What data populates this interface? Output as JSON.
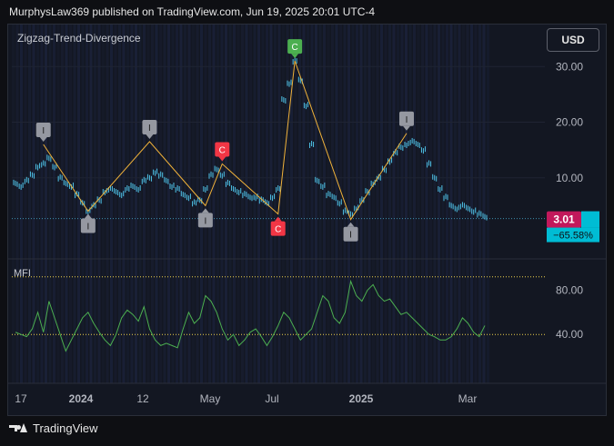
{
  "header": {
    "publisher_line": "MurphysLaw369 published on TradingView.com, Jun 19, 2025 20:01 UTC-4"
  },
  "indicator": {
    "title": "Zigzag-Trend-Divergence"
  },
  "currency_button": "USD",
  "mfi_label": "MFI",
  "footer": {
    "brand": "TradingView"
  },
  "colors": {
    "price": "#4fc3e8",
    "zigzag": "#f0b23a",
    "mfi": "#4caf50",
    "badge_i": "#9598a1",
    "badge_c_green": "#4caf50",
    "badge_c_red": "#f23645",
    "last_price_bg": "#c2185b",
    "pct_bg": "#00bcd4",
    "background": "#131722"
  },
  "chart_data": [
    {
      "type": "line",
      "price_axis": {
        "ticks": [
          "30.00",
          "20.00",
          "10.00"
        ],
        "values": [
          30,
          20,
          10
        ]
      },
      "last_price": "3.01",
      "change_pct": "−65.58%",
      "x_labels": [
        "17",
        "2024",
        "12",
        "May",
        "Jul",
        "2025",
        "Mar"
      ],
      "series": [
        {
          "values": [
            9.0,
            8.5,
            9.5,
            10.5,
            12.0,
            12.5,
            13.5,
            12.0,
            10.0,
            9.0,
            8.5,
            7.0,
            5.5,
            4.0,
            5.0,
            6.0,
            7.5,
            8.0,
            7.5,
            7.0,
            8.0,
            8.5,
            8.0,
            9.5,
            10.0,
            11.0,
            10.5,
            9.5,
            8.5,
            8.0,
            7.0,
            6.5,
            5.5,
            6.0,
            8.0,
            10.5,
            11.5,
            10.5,
            9.0,
            8.0,
            7.5,
            7.0,
            6.5,
            6.5,
            6.0,
            5.5,
            6.5,
            8.0,
            24.0,
            27.0,
            31.0,
            27.5,
            23.0,
            16.0,
            9.5,
            8.5,
            7.0,
            6.5,
            5.5,
            4.0,
            3.5,
            4.5,
            6.0,
            7.5,
            9.0,
            10.0,
            11.5,
            13.0,
            14.5,
            15.5,
            16.0,
            16.5,
            16.0,
            15.0,
            12.5,
            10.0,
            8.0,
            6.5,
            5.0,
            4.5,
            5.0,
            4.5,
            4.0,
            3.5,
            3.01
          ]
        }
      ],
      "zigzag": [
        {
          "i": 5,
          "v": 16.0,
          "label": "I",
          "pos": "top"
        },
        {
          "i": 13,
          "v": 4.0,
          "label": "I",
          "pos": "bottom"
        },
        {
          "i": 24,
          "v": 16.5,
          "label": "I",
          "pos": "top"
        },
        {
          "i": 34,
          "v": 5.0,
          "label": "I",
          "pos": "bottom"
        },
        {
          "i": 37,
          "v": 12.5,
          "label": "C",
          "pos": "top",
          "color": "red"
        },
        {
          "i": 47,
          "v": 3.5,
          "label": "C",
          "pos": "bottom",
          "color": "red"
        },
        {
          "i": 50,
          "v": 31.0,
          "label": "C",
          "pos": "top",
          "color": "green"
        },
        {
          "i": 60,
          "v": 2.5,
          "label": "I",
          "pos": "bottom"
        },
        {
          "i": 70,
          "v": 18.0,
          "label": "I",
          "pos": "top"
        }
      ]
    },
    {
      "type": "line",
      "name": "MFI",
      "y_axis": {
        "ticks": [
          "80.00",
          "40.00"
        ],
        "values": [
          80,
          40
        ]
      },
      "series": [
        {
          "values": [
            42,
            40,
            38,
            45,
            60,
            42,
            70,
            55,
            40,
            25,
            35,
            45,
            55,
            60,
            50,
            42,
            35,
            30,
            40,
            55,
            62,
            58,
            52,
            65,
            45,
            35,
            30,
            32,
            30,
            28,
            45,
            60,
            50,
            55,
            75,
            70,
            60,
            45,
            35,
            40,
            30,
            35,
            42,
            45,
            38,
            30,
            38,
            48,
            60,
            55,
            45,
            35,
            40,
            45,
            60,
            75,
            70,
            55,
            50,
            60,
            88,
            75,
            70,
            80,
            85,
            75,
            70,
            72,
            65,
            58,
            60,
            55,
            50,
            45,
            40,
            38,
            35,
            35,
            38,
            45,
            55,
            50,
            42,
            38,
            48
          ]
        }
      ]
    }
  ]
}
